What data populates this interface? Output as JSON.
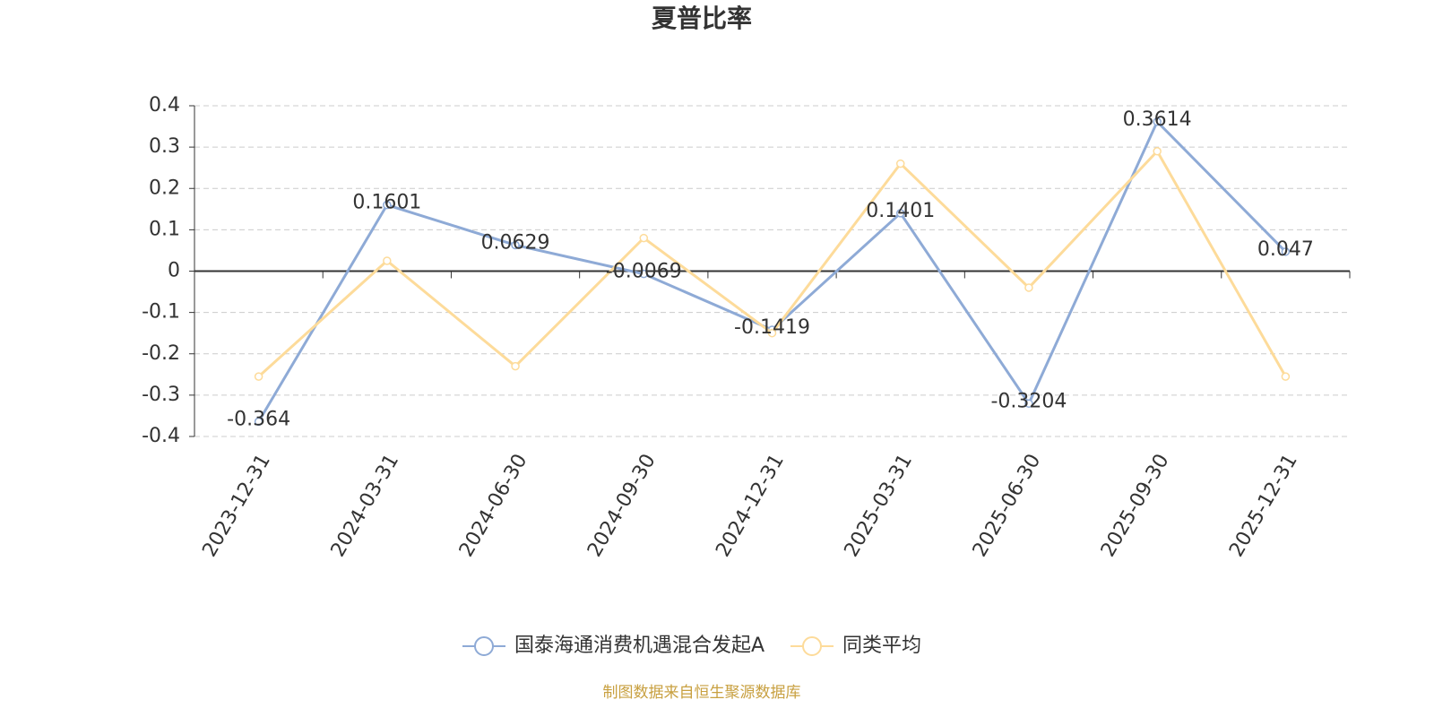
{
  "chart_data": {
    "type": "line",
    "title": "夏普比率",
    "categories": [
      "2023-12-31",
      "2024-03-31",
      "2024-06-30",
      "2024-09-30",
      "2024-12-31",
      "2025-03-31",
      "2025-06-30",
      "2025-09-30",
      "2025-12-31"
    ],
    "series": [
      {
        "name": "国泰海通消费机遇混合发起A",
        "color": "#8eaad6",
        "values": [
          -0.364,
          0.1601,
          0.0629,
          -0.0069,
          -0.1419,
          0.1401,
          -0.3204,
          0.3614,
          0.047
        ]
      },
      {
        "name": "同类平均",
        "color": "#fddb9a",
        "values": [
          -0.255,
          0.025,
          -0.23,
          0.08,
          -0.15,
          0.26,
          -0.04,
          0.29,
          -0.255
        ]
      }
    ],
    "ylim": [
      -0.4,
      0.4
    ],
    "yticks": [
      -0.4,
      -0.3,
      -0.2,
      -0.1,
      0,
      0.1,
      0.2,
      0.3,
      0.4
    ],
    "grid": true,
    "legend": "bottom",
    "source": "制图数据来自恒生聚源数据库"
  }
}
